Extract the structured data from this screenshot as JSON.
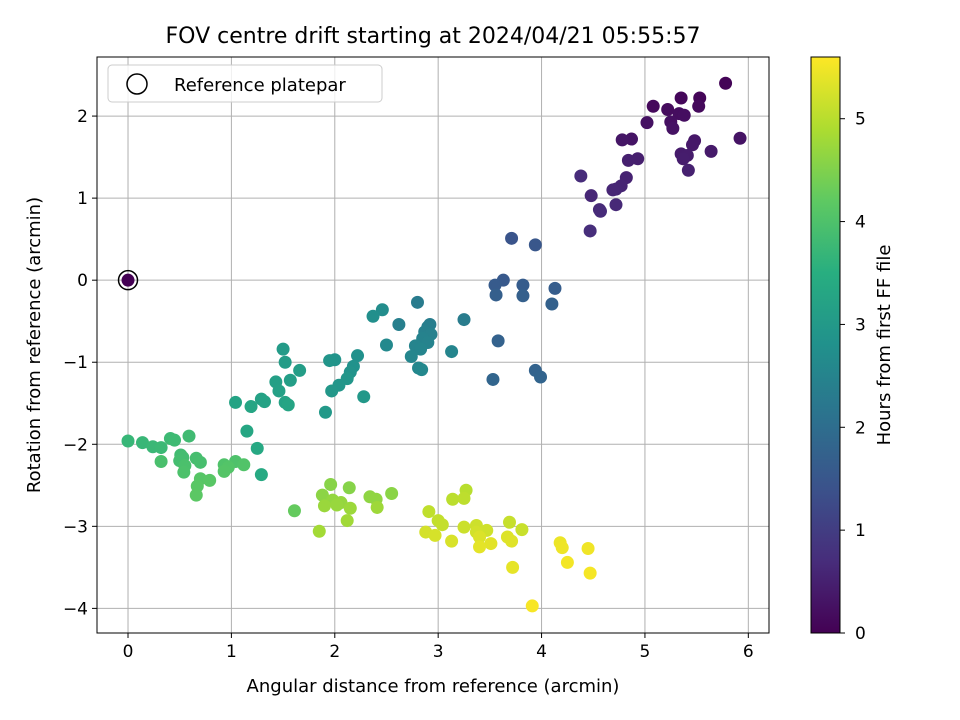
{
  "chart_data": {
    "type": "scatter",
    "title": "FOV centre drift starting at 2024/04/21 05:55:57",
    "xlabel": "Angular distance from reference (arcmin)",
    "ylabel": "Rotation from reference (arcmin)",
    "xlim": [
      -0.3,
      6.2
    ],
    "ylim": [
      -4.3,
      2.72
    ],
    "xticks": [
      0,
      1,
      2,
      3,
      4,
      5,
      6
    ],
    "yticks": [
      -4,
      -3,
      -2,
      -1,
      0,
      1,
      2
    ],
    "grid": true,
    "legend": {
      "placement": "top-left",
      "entries": [
        "Reference platepar"
      ]
    },
    "reference_point": {
      "x": 0,
      "y": 0
    },
    "colorbar": {
      "label": "Hours from first FF file",
      "colormap": "viridis",
      "range": [
        0,
        5.6
      ],
      "ticks": [
        0,
        1,
        2,
        3,
        4,
        5
      ]
    },
    "points": [
      {
        "x": 0.0,
        "y": 0.0,
        "c": 0.0
      },
      {
        "x": 5.78,
        "y": 2.4,
        "c": 0.05
      },
      {
        "x": 5.53,
        "y": 2.22,
        "c": 0.07
      },
      {
        "x": 5.35,
        "y": 2.22,
        "c": 0.1
      },
      {
        "x": 5.08,
        "y": 2.12,
        "c": 0.12
      },
      {
        "x": 5.52,
        "y": 2.12,
        "c": 0.15
      },
      {
        "x": 5.22,
        "y": 2.08,
        "c": 0.17
      },
      {
        "x": 5.33,
        "y": 2.03,
        "c": 0.19
      },
      {
        "x": 5.38,
        "y": 2.01,
        "c": 0.21
      },
      {
        "x": 5.25,
        "y": 1.93,
        "c": 0.23
      },
      {
        "x": 5.02,
        "y": 1.92,
        "c": 0.25
      },
      {
        "x": 5.27,
        "y": 1.85,
        "c": 0.27
      },
      {
        "x": 5.92,
        "y": 1.73,
        "c": 0.29
      },
      {
        "x": 4.87,
        "y": 1.72,
        "c": 0.31
      },
      {
        "x": 4.78,
        "y": 1.71,
        "c": 0.33
      },
      {
        "x": 5.48,
        "y": 1.7,
        "c": 0.35
      },
      {
        "x": 5.46,
        "y": 1.65,
        "c": 0.37
      },
      {
        "x": 5.64,
        "y": 1.57,
        "c": 0.39
      },
      {
        "x": 5.35,
        "y": 1.54,
        "c": 0.41
      },
      {
        "x": 5.41,
        "y": 1.52,
        "c": 0.43
      },
      {
        "x": 5.37,
        "y": 1.48,
        "c": 0.45
      },
      {
        "x": 4.93,
        "y": 1.48,
        "c": 0.47
      },
      {
        "x": 4.84,
        "y": 1.46,
        "c": 0.49
      },
      {
        "x": 5.42,
        "y": 1.34,
        "c": 0.51
      },
      {
        "x": 4.82,
        "y": 1.25,
        "c": 0.53
      },
      {
        "x": 4.77,
        "y": 1.15,
        "c": 0.55
      },
      {
        "x": 4.72,
        "y": 1.11,
        "c": 0.57
      },
      {
        "x": 4.69,
        "y": 1.1,
        "c": 0.59
      },
      {
        "x": 4.48,
        "y": 1.03,
        "c": 0.61
      },
      {
        "x": 4.72,
        "y": 0.92,
        "c": 0.63
      },
      {
        "x": 4.56,
        "y": 0.86,
        "c": 0.65
      },
      {
        "x": 4.57,
        "y": 0.84,
        "c": 0.67
      },
      {
        "x": 4.38,
        "y": 1.27,
        "c": 0.69
      },
      {
        "x": 4.47,
        "y": 0.6,
        "c": 0.71
      },
      {
        "x": 3.71,
        "y": 0.51,
        "c": 1.45
      },
      {
        "x": 3.94,
        "y": 0.43,
        "c": 1.5
      },
      {
        "x": 3.63,
        "y": 0.0,
        "c": 1.55
      },
      {
        "x": 3.55,
        "y": -0.06,
        "c": 1.6
      },
      {
        "x": 3.82,
        "y": -0.06,
        "c": 1.62
      },
      {
        "x": 4.13,
        "y": -0.1,
        "c": 1.65
      },
      {
        "x": 3.56,
        "y": -0.18,
        "c": 1.68
      },
      {
        "x": 3.82,
        "y": -0.19,
        "c": 1.7
      },
      {
        "x": 4.1,
        "y": -0.29,
        "c": 1.73
      },
      {
        "x": 3.58,
        "y": -0.74,
        "c": 1.75
      },
      {
        "x": 3.94,
        "y": -1.1,
        "c": 1.78
      },
      {
        "x": 3.99,
        "y": -1.18,
        "c": 1.8
      },
      {
        "x": 3.53,
        "y": -1.21,
        "c": 1.82
      },
      {
        "x": 2.8,
        "y": -0.27,
        "c": 2.3
      },
      {
        "x": 3.25,
        "y": -0.48,
        "c": 2.32
      },
      {
        "x": 2.92,
        "y": -0.54,
        "c": 2.35
      },
      {
        "x": 2.9,
        "y": -0.57,
        "c": 2.38
      },
      {
        "x": 2.62,
        "y": -0.54,
        "c": 2.4
      },
      {
        "x": 2.87,
        "y": -0.63,
        "c": 2.42
      },
      {
        "x": 2.93,
        "y": -0.66,
        "c": 2.44
      },
      {
        "x": 2.85,
        "y": -0.71,
        "c": 2.46
      },
      {
        "x": 2.9,
        "y": -0.76,
        "c": 2.48
      },
      {
        "x": 2.78,
        "y": -0.8,
        "c": 2.5
      },
      {
        "x": 2.83,
        "y": -0.84,
        "c": 2.52
      },
      {
        "x": 3.13,
        "y": -0.87,
        "c": 2.54
      },
      {
        "x": 2.74,
        "y": -0.93,
        "c": 2.56
      },
      {
        "x": 2.81,
        "y": -1.07,
        "c": 2.58
      },
      {
        "x": 2.84,
        "y": -1.09,
        "c": 2.6
      },
      {
        "x": 2.5,
        "y": -0.79,
        "c": 2.62
      },
      {
        "x": 2.46,
        "y": -0.36,
        "c": 2.7
      },
      {
        "x": 2.37,
        "y": -0.44,
        "c": 2.75
      },
      {
        "x": 2.22,
        "y": -0.92,
        "c": 2.8
      },
      {
        "x": 2.18,
        "y": -1.05,
        "c": 2.82
      },
      {
        "x": 2.15,
        "y": -1.12,
        "c": 2.85
      },
      {
        "x": 2.0,
        "y": -0.97,
        "c": 2.87
      },
      {
        "x": 1.95,
        "y": -0.98,
        "c": 2.89
      },
      {
        "x": 2.12,
        "y": -1.2,
        "c": 2.91
      },
      {
        "x": 2.04,
        "y": -1.28,
        "c": 2.93
      },
      {
        "x": 1.97,
        "y": -1.35,
        "c": 2.95
      },
      {
        "x": 2.28,
        "y": -1.42,
        "c": 2.97
      },
      {
        "x": 1.91,
        "y": -1.61,
        "c": 2.99
      },
      {
        "x": 1.5,
        "y": -0.84,
        "c": 3.05
      },
      {
        "x": 1.52,
        "y": -1.0,
        "c": 3.07
      },
      {
        "x": 1.66,
        "y": -1.1,
        "c": 3.1
      },
      {
        "x": 1.57,
        "y": -1.22,
        "c": 3.12
      },
      {
        "x": 1.43,
        "y": -1.24,
        "c": 3.14
      },
      {
        "x": 1.46,
        "y": -1.35,
        "c": 3.16
      },
      {
        "x": 1.29,
        "y": -1.45,
        "c": 3.18
      },
      {
        "x": 1.32,
        "y": -1.48,
        "c": 3.2
      },
      {
        "x": 1.52,
        "y": -1.49,
        "c": 3.22
      },
      {
        "x": 1.04,
        "y": -1.49,
        "c": 3.24
      },
      {
        "x": 1.55,
        "y": -1.52,
        "c": 3.26
      },
      {
        "x": 1.19,
        "y": -1.54,
        "c": 3.28
      },
      {
        "x": 1.15,
        "y": -1.84,
        "c": 3.3
      },
      {
        "x": 1.25,
        "y": -2.05,
        "c": 3.35
      },
      {
        "x": 1.29,
        "y": -2.37,
        "c": 3.38
      },
      {
        "x": 0.0,
        "y": -1.96,
        "c": 3.7
      },
      {
        "x": 0.14,
        "y": -1.98,
        "c": 3.72
      },
      {
        "x": 0.24,
        "y": -2.03,
        "c": 3.74
      },
      {
        "x": 0.32,
        "y": -2.04,
        "c": 3.76
      },
      {
        "x": 0.41,
        "y": -1.93,
        "c": 3.78
      },
      {
        "x": 0.45,
        "y": -1.95,
        "c": 3.8
      },
      {
        "x": 0.59,
        "y": -1.9,
        "c": 3.82
      },
      {
        "x": 0.51,
        "y": -2.13,
        "c": 3.84
      },
      {
        "x": 0.53,
        "y": -2.16,
        "c": 3.86
      },
      {
        "x": 0.5,
        "y": -2.2,
        "c": 3.88
      },
      {
        "x": 0.66,
        "y": -2.17,
        "c": 3.9
      },
      {
        "x": 0.7,
        "y": -2.22,
        "c": 3.92
      },
      {
        "x": 0.32,
        "y": -2.21,
        "c": 3.94
      },
      {
        "x": 0.55,
        "y": -2.26,
        "c": 3.96
      },
      {
        "x": 0.54,
        "y": -2.34,
        "c": 3.98
      },
      {
        "x": 1.04,
        "y": -2.21,
        "c": 4.0
      },
      {
        "x": 0.93,
        "y": -2.25,
        "c": 4.02
      },
      {
        "x": 1.12,
        "y": -2.25,
        "c": 4.04
      },
      {
        "x": 0.97,
        "y": -2.28,
        "c": 4.06
      },
      {
        "x": 0.93,
        "y": -2.33,
        "c": 4.08
      },
      {
        "x": 0.7,
        "y": -2.42,
        "c": 4.1
      },
      {
        "x": 0.79,
        "y": -2.44,
        "c": 4.12
      },
      {
        "x": 0.67,
        "y": -2.51,
        "c": 4.14
      },
      {
        "x": 0.66,
        "y": -2.62,
        "c": 4.16
      },
      {
        "x": 1.61,
        "y": -2.81,
        "c": 4.25
      },
      {
        "x": 2.14,
        "y": -2.53,
        "c": 4.55
      },
      {
        "x": 1.96,
        "y": -2.49,
        "c": 4.57
      },
      {
        "x": 2.55,
        "y": -2.6,
        "c": 4.59
      },
      {
        "x": 1.88,
        "y": -2.62,
        "c": 4.61
      },
      {
        "x": 2.34,
        "y": -2.64,
        "c": 4.63
      },
      {
        "x": 2.4,
        "y": -2.67,
        "c": 4.65
      },
      {
        "x": 1.98,
        "y": -2.68,
        "c": 4.67
      },
      {
        "x": 2.06,
        "y": -2.71,
        "c": 4.69
      },
      {
        "x": 2.02,
        "y": -2.74,
        "c": 4.71
      },
      {
        "x": 1.9,
        "y": -2.75,
        "c": 4.73
      },
      {
        "x": 2.15,
        "y": -2.78,
        "c": 4.75
      },
      {
        "x": 2.41,
        "y": -2.77,
        "c": 4.77
      },
      {
        "x": 2.12,
        "y": -2.93,
        "c": 4.79
      },
      {
        "x": 1.85,
        "y": -3.06,
        "c": 4.81
      },
      {
        "x": 3.27,
        "y": -2.56,
        "c": 5.0
      },
      {
        "x": 3.14,
        "y": -2.67,
        "c": 5.02
      },
      {
        "x": 3.25,
        "y": -2.66,
        "c": 5.04
      },
      {
        "x": 2.91,
        "y": -2.82,
        "c": 5.06
      },
      {
        "x": 3.0,
        "y": -2.93,
        "c": 5.08
      },
      {
        "x": 3.04,
        "y": -2.98,
        "c": 5.1
      },
      {
        "x": 3.69,
        "y": -2.95,
        "c": 5.12
      },
      {
        "x": 3.81,
        "y": -3.04,
        "c": 5.14
      },
      {
        "x": 3.25,
        "y": -3.01,
        "c": 5.16
      },
      {
        "x": 3.37,
        "y": -2.99,
        "c": 5.18
      },
      {
        "x": 3.47,
        "y": -3.05,
        "c": 5.2
      },
      {
        "x": 3.37,
        "y": -3.07,
        "c": 5.22
      },
      {
        "x": 2.88,
        "y": -3.07,
        "c": 5.24
      },
      {
        "x": 2.97,
        "y": -3.11,
        "c": 5.26
      },
      {
        "x": 3.13,
        "y": -3.18,
        "c": 5.28
      },
      {
        "x": 3.4,
        "y": -3.13,
        "c": 5.3
      },
      {
        "x": 3.67,
        "y": -3.13,
        "c": 5.32
      },
      {
        "x": 3.71,
        "y": -3.18,
        "c": 5.34
      },
      {
        "x": 3.51,
        "y": -3.21,
        "c": 5.36
      },
      {
        "x": 3.4,
        "y": -3.25,
        "c": 5.38
      },
      {
        "x": 3.72,
        "y": -3.5,
        "c": 5.4
      },
      {
        "x": 4.18,
        "y": -3.2,
        "c": 5.45
      },
      {
        "x": 4.2,
        "y": -3.26,
        "c": 5.47
      },
      {
        "x": 4.45,
        "y": -3.27,
        "c": 5.49
      },
      {
        "x": 4.25,
        "y": -3.44,
        "c": 5.51
      },
      {
        "x": 4.47,
        "y": -3.57,
        "c": 5.53
      },
      {
        "x": 3.91,
        "y": -3.97,
        "c": 5.55
      }
    ]
  }
}
